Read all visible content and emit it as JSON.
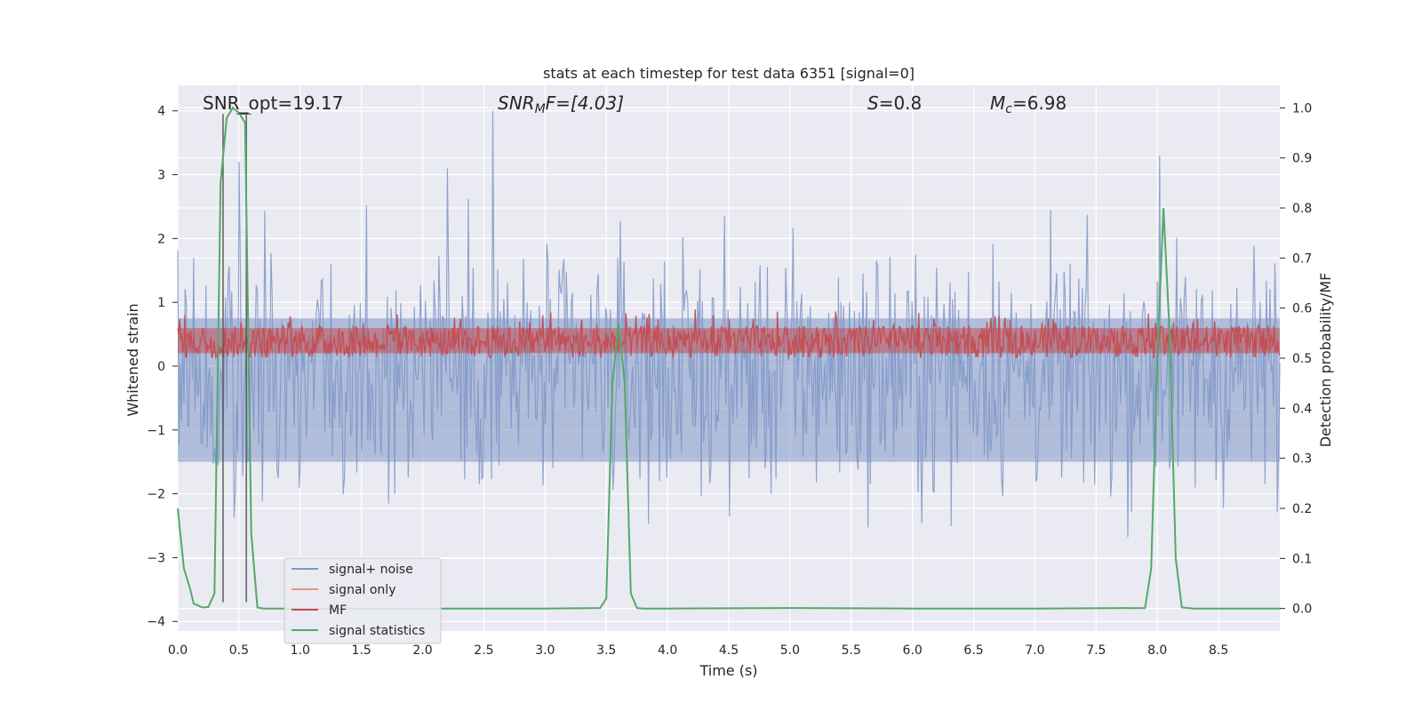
{
  "chart_data": {
    "type": "line",
    "title": "stats at each timestep for test data 6351 [signal=0]",
    "xlabel": "Time (s)",
    "ylabel_left": "Whitened strain",
    "ylabel_right": "Detection probability/MF",
    "xlim": [
      0,
      9.0
    ],
    "ylim_left": [
      -4.15,
      4.4
    ],
    "ylim_right": [
      -0.045,
      1.045
    ],
    "x_ticks": [
      0.0,
      0.5,
      1.0,
      1.5,
      2.0,
      2.5,
      3.0,
      3.5,
      4.0,
      4.5,
      5.0,
      5.5,
      6.0,
      6.5,
      7.0,
      7.5,
      8.0,
      8.5
    ],
    "x_tick_labels": [
      "0.0",
      "0.5",
      "1.0",
      "1.5",
      "2.0",
      "2.5",
      "3.0",
      "3.5",
      "4.0",
      "4.5",
      "5.0",
      "5.5",
      "6.0",
      "6.5",
      "7.0",
      "7.5",
      "8.0",
      "8.5"
    ],
    "y_left_ticks": [
      4,
      3,
      2,
      1,
      0,
      -1,
      -2,
      -3,
      -4
    ],
    "y_left_tick_labels": [
      "4",
      "3",
      "2",
      "1",
      "0",
      "−1",
      "−2",
      "−3",
      "−4"
    ],
    "y_right_ticks": [
      1.0,
      0.9,
      0.8,
      0.7,
      0.6,
      0.5,
      0.4,
      0.3,
      0.2,
      0.1,
      0.0
    ],
    "y_right_tick_labels": [
      "1.0",
      "0.9",
      "0.8",
      "0.7",
      "0.6",
      "0.5",
      "0.4",
      "0.3",
      "0.2",
      "0.1",
      "0.0"
    ],
    "grid": true,
    "legend_location": "lower-left",
    "annotations": {
      "snr_opt": "SNR_opt=19.17",
      "snr_mf_base": "SNR",
      "snr_mf_sub": "M",
      "snr_mf_rest": "F=[4.03]",
      "s_base": "S",
      "s_rest": "=0.8",
      "mc_base": "M",
      "mc_sub": "c",
      "mc_rest": "=6.98"
    },
    "vertical_markers": [
      0.37,
      0.56
    ],
    "series": [
      {
        "name": "signal+ noise",
        "color": "#7f97c7",
        "axis": "left",
        "description": "noisy whitened strain, roughly symmetric about -0.1, amplitude up to about +/-3",
        "sample_count": 900,
        "peaks": [
          {
            "x": 2.57,
            "y": 4.0
          },
          {
            "x": 0.5,
            "y": 3.2
          },
          {
            "x": 2.2,
            "y": 3.1
          },
          {
            "x": 8.02,
            "y": 3.3
          }
        ]
      },
      {
        "name": "signal only",
        "color": "#e59a7c",
        "axis": "left",
        "x": [],
        "y": []
      },
      {
        "name": "MF",
        "color": "#c44e52",
        "axis": "right",
        "description": "matched filter output fluctuating between about 0.5 and 0.6"
      },
      {
        "name": "signal statistics",
        "color": "#55a868",
        "axis": "right",
        "x": [
          0.0,
          0.05,
          0.1,
          0.13,
          0.2,
          0.25,
          0.3,
          0.35,
          0.4,
          0.45,
          0.5,
          0.55,
          0.6,
          0.65,
          0.7,
          1.0,
          2.0,
          3.0,
          3.45,
          3.5,
          3.55,
          3.6,
          3.65,
          3.7,
          3.75,
          3.8,
          4.0,
          5.0,
          6.0,
          7.0,
          7.9,
          7.95,
          8.0,
          8.05,
          8.1,
          8.15,
          8.2,
          8.3,
          9.0
        ],
        "y": [
          0.2,
          0.08,
          0.04,
          0.01,
          0.002,
          0.003,
          0.03,
          0.85,
          0.98,
          1.0,
          0.99,
          0.97,
          0.15,
          0.002,
          0.0,
          0.0,
          0.0,
          0.0,
          0.001,
          0.02,
          0.45,
          0.57,
          0.45,
          0.03,
          0.001,
          0.0,
          0.0,
          0.001,
          0.0,
          0.0,
          0.001,
          0.08,
          0.5,
          0.8,
          0.55,
          0.1,
          0.002,
          0.0,
          0.0
        ]
      }
    ]
  }
}
